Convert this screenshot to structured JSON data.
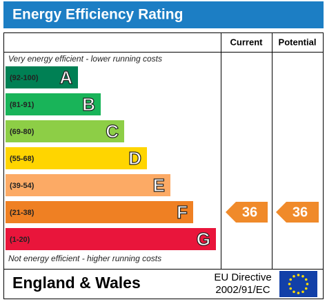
{
  "header": {
    "title": "Energy Efficiency Rating"
  },
  "columns": {
    "current": "Current",
    "potential": "Potential"
  },
  "top_note": "Very energy efficient - lower running costs",
  "bottom_note": "Not energy efficient - higher running costs",
  "bands": [
    {
      "range": "(92-100)",
      "letter": "A",
      "color": "#008054"
    },
    {
      "range": "(81-91)",
      "letter": "B",
      "color": "#19b459"
    },
    {
      "range": "(69-80)",
      "letter": "C",
      "color": "#8dce46"
    },
    {
      "range": "(55-68)",
      "letter": "D",
      "color": "#ffd500"
    },
    {
      "range": "(39-54)",
      "letter": "E",
      "color": "#fcaa65"
    },
    {
      "range": "(21-38)",
      "letter": "F",
      "color": "#ef8023"
    },
    {
      "range": "(1-20)",
      "letter": "G",
      "color": "#e9153b"
    }
  ],
  "ratings": {
    "current": "36",
    "potential": "36"
  },
  "footer": {
    "region": "England & Wales",
    "directive_line1": "EU Directive",
    "directive_line2": "2002/91/EC"
  }
}
